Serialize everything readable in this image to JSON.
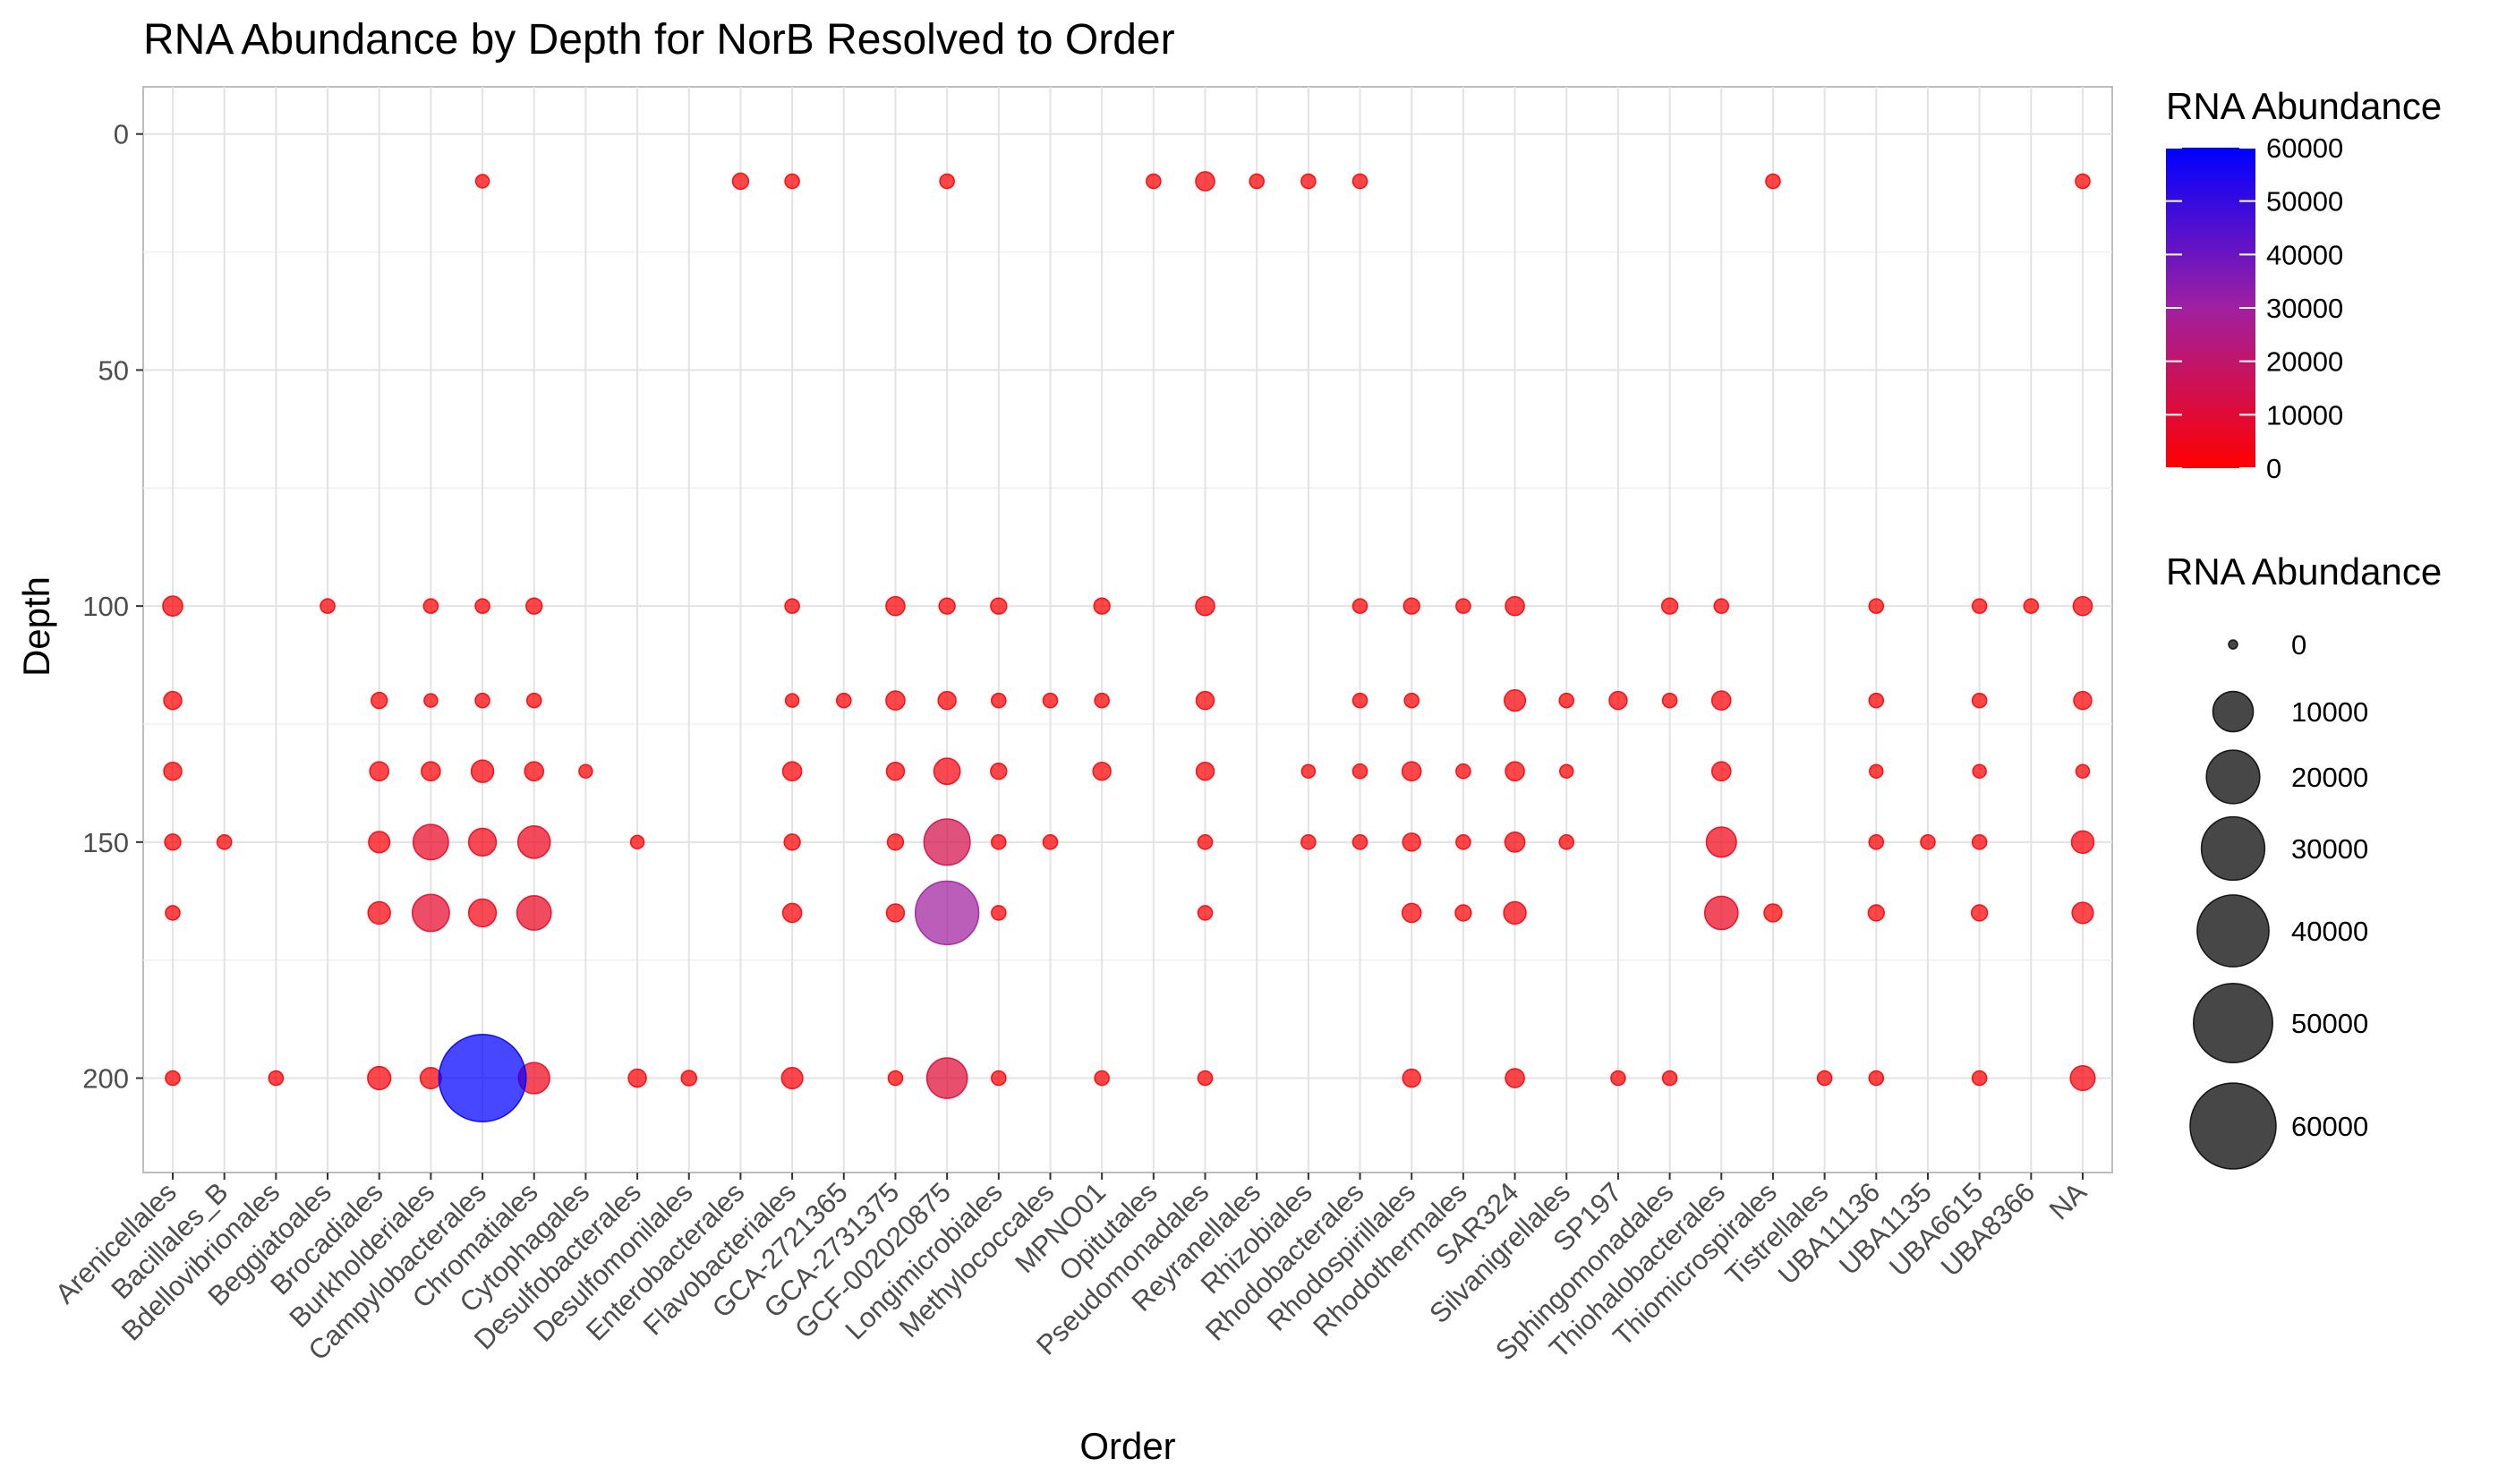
{
  "chart_data": {
    "type": "scatter",
    "title": "RNA Abundance by Depth for NorB Resolved to Order",
    "xlabel": "Order",
    "ylabel": "Depth",
    "ylim": [
      220,
      -10
    ],
    "y_reversed": true,
    "y_ticks": [
      0,
      50,
      100,
      150,
      200
    ],
    "grid": true,
    "categories": [
      "Arenicellales",
      "Bacillales_B",
      "Bdellovibrionales",
      "Beggiatoales",
      "Brocadiales",
      "Burkholderiales",
      "Campylobacterales",
      "Chromatiales",
      "Cytophagales",
      "Desulfobacterales",
      "Desulfomonilales",
      "Enterobacterales",
      "Flavobacteriales",
      "GCA-2721365",
      "GCA-2731375",
      "GCF-002020875",
      "Longimicrobiales",
      "Methylococcales",
      "MPNO01",
      "Opitutales",
      "Pseudomonadales",
      "Reyranellales",
      "Rhizobiales",
      "Rhodobacterales",
      "Rhodospirillales",
      "Rhodothermales",
      "SAR324",
      "Silvanigrellales",
      "SP197",
      "Sphingomonadales",
      "Thiohalobacterales",
      "Thiomicrospirales",
      "Tistrellales",
      "UBA11136",
      "UBA1135",
      "UBA6615",
      "UBA8366",
      "NA"
    ],
    "color_legend": {
      "title": "RNA Abundance",
      "low_color": "#ff0000",
      "mid_color": "#a020a0",
      "high_color": "#0000ff",
      "range": [
        0,
        60000
      ],
      "ticks": [
        0,
        10000,
        20000,
        30000,
        40000,
        50000,
        60000
      ]
    },
    "size_legend": {
      "title": "RNA Abundance",
      "values": [
        0,
        10000,
        20000,
        30000,
        40000,
        50000,
        60000
      ]
    },
    "points": [
      {
        "order": "Arenicellales",
        "depth": 100,
        "abundance": 1200
      },
      {
        "order": "Arenicellales",
        "depth": 120,
        "abundance": 800
      },
      {
        "order": "Arenicellales",
        "depth": 135,
        "abundance": 800
      },
      {
        "order": "Arenicellales",
        "depth": 150,
        "abundance": 500
      },
      {
        "order": "Arenicellales",
        "depth": 165,
        "abundance": 300
      },
      {
        "order": "Arenicellales",
        "depth": 200,
        "abundance": 300
      },
      {
        "order": "Bacillales_B",
        "depth": 150,
        "abundance": 300
      },
      {
        "order": "Bdellovibrionales",
        "depth": 200,
        "abundance": 300
      },
      {
        "order": "Beggiatoales",
        "depth": 100,
        "abundance": 300
      },
      {
        "order": "Brocadiales",
        "depth": 120,
        "abundance": 500
      },
      {
        "order": "Brocadiales",
        "depth": 135,
        "abundance": 1000
      },
      {
        "order": "Brocadiales",
        "depth": 150,
        "abundance": 1500
      },
      {
        "order": "Brocadiales",
        "depth": 165,
        "abundance": 1800
      },
      {
        "order": "Brocadiales",
        "depth": 200,
        "abundance": 2000
      },
      {
        "order": "Burkholderiales",
        "depth": 100,
        "abundance": 300
      },
      {
        "order": "Burkholderiales",
        "depth": 120,
        "abundance": 200
      },
      {
        "order": "Burkholderiales",
        "depth": 135,
        "abundance": 1000
      },
      {
        "order": "Burkholderiales",
        "depth": 150,
        "abundance": 7000
      },
      {
        "order": "Burkholderiales",
        "depth": 165,
        "abundance": 8000
      },
      {
        "order": "Burkholderiales",
        "depth": 200,
        "abundance": 1500
      },
      {
        "order": "Campylobacterales",
        "depth": 10,
        "abundance": 200
      },
      {
        "order": "Campylobacterales",
        "depth": 100,
        "abundance": 300
      },
      {
        "order": "Campylobacterales",
        "depth": 120,
        "abundance": 300
      },
      {
        "order": "Campylobacterales",
        "depth": 135,
        "abundance": 1800
      },
      {
        "order": "Campylobacterales",
        "depth": 150,
        "abundance": 3500
      },
      {
        "order": "Campylobacterales",
        "depth": 165,
        "abundance": 3500
      },
      {
        "order": "Campylobacterales",
        "depth": 200,
        "abundance": 62000
      },
      {
        "order": "Chromatiales",
        "depth": 100,
        "abundance": 500
      },
      {
        "order": "Chromatiales",
        "depth": 120,
        "abundance": 300
      },
      {
        "order": "Chromatiales",
        "depth": 135,
        "abundance": 1000
      },
      {
        "order": "Chromatiales",
        "depth": 150,
        "abundance": 5500
      },
      {
        "order": "Chromatiales",
        "depth": 165,
        "abundance": 6500
      },
      {
        "order": "Chromatiales",
        "depth": 200,
        "abundance": 5000
      },
      {
        "order": "Cytophagales",
        "depth": 135,
        "abundance": 200
      },
      {
        "order": "Desulfobacterales",
        "depth": 150,
        "abundance": 200
      },
      {
        "order": "Desulfobacterales",
        "depth": 200,
        "abundance": 800
      },
      {
        "order": "Desulfomonilales",
        "depth": 200,
        "abundance": 400
      },
      {
        "order": "Enterobacterales",
        "depth": 10,
        "abundance": 500
      },
      {
        "order": "Flavobacteriales",
        "depth": 10,
        "abundance": 300
      },
      {
        "order": "Flavobacteriales",
        "depth": 100,
        "abundance": 300
      },
      {
        "order": "Flavobacteriales",
        "depth": 120,
        "abundance": 200
      },
      {
        "order": "Flavobacteriales",
        "depth": 135,
        "abundance": 1000
      },
      {
        "order": "Flavobacteriales",
        "depth": 150,
        "abundance": 500
      },
      {
        "order": "Flavobacteriales",
        "depth": 165,
        "abundance": 1000
      },
      {
        "order": "Flavobacteriales",
        "depth": 200,
        "abundance": 1500
      },
      {
        "order": "GCA-2721365",
        "depth": 120,
        "abundance": 300
      },
      {
        "order": "GCA-2731375",
        "depth": 100,
        "abundance": 1000
      },
      {
        "order": "GCA-2731375",
        "depth": 120,
        "abundance": 1000
      },
      {
        "order": "GCA-2731375",
        "depth": 135,
        "abundance": 800
      },
      {
        "order": "GCA-2731375",
        "depth": 150,
        "abundance": 500
      },
      {
        "order": "GCA-2731375",
        "depth": 165,
        "abundance": 800
      },
      {
        "order": "GCA-2731375",
        "depth": 200,
        "abundance": 300
      },
      {
        "order": "GCF-002020875",
        "depth": 10,
        "abundance": 300
      },
      {
        "order": "GCF-002020875",
        "depth": 100,
        "abundance": 500
      },
      {
        "order": "GCF-002020875",
        "depth": 120,
        "abundance": 800
      },
      {
        "order": "GCF-002020875",
        "depth": 135,
        "abundance": 3000
      },
      {
        "order": "GCF-002020875",
        "depth": 150,
        "abundance": 14000
      },
      {
        "order": "GCF-002020875",
        "depth": 165,
        "abundance": 30000
      },
      {
        "order": "GCF-002020875",
        "depth": 200,
        "abundance": 10000
      },
      {
        "order": "Longimicrobiales",
        "depth": 100,
        "abundance": 500
      },
      {
        "order": "Longimicrobiales",
        "depth": 120,
        "abundance": 300
      },
      {
        "order": "Longimicrobiales",
        "depth": 135,
        "abundance": 500
      },
      {
        "order": "Longimicrobiales",
        "depth": 150,
        "abundance": 300
      },
      {
        "order": "Longimicrobiales",
        "depth": 165,
        "abundance": 300
      },
      {
        "order": "Longimicrobiales",
        "depth": 200,
        "abundance": 300
      },
      {
        "order": "Methylococcales",
        "depth": 120,
        "abundance": 300
      },
      {
        "order": "Methylococcales",
        "depth": 150,
        "abundance": 300
      },
      {
        "order": "MPNO01",
        "depth": 100,
        "abundance": 500
      },
      {
        "order": "MPNO01",
        "depth": 120,
        "abundance": 300
      },
      {
        "order": "MPNO01",
        "depth": 135,
        "abundance": 800
      },
      {
        "order": "MPNO01",
        "depth": 200,
        "abundance": 300
      },
      {
        "order": "Opitutales",
        "depth": 10,
        "abundance": 300
      },
      {
        "order": "Pseudomonadales",
        "depth": 10,
        "abundance": 1000
      },
      {
        "order": "Pseudomonadales",
        "depth": 100,
        "abundance": 1000
      },
      {
        "order": "Pseudomonadales",
        "depth": 120,
        "abundance": 800
      },
      {
        "order": "Pseudomonadales",
        "depth": 135,
        "abundance": 800
      },
      {
        "order": "Pseudomonadales",
        "depth": 150,
        "abundance": 300
      },
      {
        "order": "Pseudomonadales",
        "depth": 165,
        "abundance": 300
      },
      {
        "order": "Pseudomonadales",
        "depth": 200,
        "abundance": 300
      },
      {
        "order": "Reyranellales",
        "depth": 10,
        "abundance": 300
      },
      {
        "order": "Rhizobiales",
        "depth": 10,
        "abundance": 300
      },
      {
        "order": "Rhizobiales",
        "depth": 135,
        "abundance": 200
      },
      {
        "order": "Rhizobiales",
        "depth": 150,
        "abundance": 300
      },
      {
        "order": "Rhodobacterales",
        "depth": 10,
        "abundance": 300
      },
      {
        "order": "Rhodobacterales",
        "depth": 100,
        "abundance": 300
      },
      {
        "order": "Rhodobacterales",
        "depth": 120,
        "abundance": 300
      },
      {
        "order": "Rhodobacterales",
        "depth": 135,
        "abundance": 300
      },
      {
        "order": "Rhodobacterales",
        "depth": 150,
        "abundance": 300
      },
      {
        "order": "Rhodospirillales",
        "depth": 100,
        "abundance": 500
      },
      {
        "order": "Rhodospirillales",
        "depth": 120,
        "abundance": 300
      },
      {
        "order": "Rhodospirillales",
        "depth": 135,
        "abundance": 1000
      },
      {
        "order": "Rhodospirillales",
        "depth": 150,
        "abundance": 800
      },
      {
        "order": "Rhodospirillales",
        "depth": 165,
        "abundance": 1000
      },
      {
        "order": "Rhodospirillales",
        "depth": 200,
        "abundance": 800
      },
      {
        "order": "Rhodothermales",
        "depth": 100,
        "abundance": 300
      },
      {
        "order": "Rhodothermales",
        "depth": 135,
        "abundance": 300
      },
      {
        "order": "Rhodothermales",
        "depth": 150,
        "abundance": 300
      },
      {
        "order": "Rhodothermales",
        "depth": 165,
        "abundance": 500
      },
      {
        "order": "SAR324",
        "depth": 100,
        "abundance": 1000
      },
      {
        "order": "SAR324",
        "depth": 120,
        "abundance": 1500
      },
      {
        "order": "SAR324",
        "depth": 135,
        "abundance": 1000
      },
      {
        "order": "SAR324",
        "depth": 150,
        "abundance": 1200
      },
      {
        "order": "SAR324",
        "depth": 165,
        "abundance": 1800
      },
      {
        "order": "SAR324",
        "depth": 200,
        "abundance": 1000
      },
      {
        "order": "Silvanigrellales",
        "depth": 120,
        "abundance": 300
      },
      {
        "order": "Silvanigrellales",
        "depth": 135,
        "abundance": 200
      },
      {
        "order": "Silvanigrellales",
        "depth": 150,
        "abundance": 300
      },
      {
        "order": "SP197",
        "depth": 120,
        "abundance": 800
      },
      {
        "order": "SP197",
        "depth": 200,
        "abundance": 300
      },
      {
        "order": "Sphingomonadales",
        "depth": 100,
        "abundance": 500
      },
      {
        "order": "Sphingomonadales",
        "depth": 120,
        "abundance": 300
      },
      {
        "order": "Sphingomonadales",
        "depth": 200,
        "abundance": 300
      },
      {
        "order": "Thiohalobacterales",
        "depth": 100,
        "abundance": 300
      },
      {
        "order": "Thiohalobacterales",
        "depth": 120,
        "abundance": 1000
      },
      {
        "order": "Thiohalobacterales",
        "depth": 135,
        "abundance": 1000
      },
      {
        "order": "Thiohalobacterales",
        "depth": 150,
        "abundance": 4500
      },
      {
        "order": "Thiohalobacterales",
        "depth": 165,
        "abundance": 6000
      },
      {
        "order": "Thiomicrospirales",
        "depth": 10,
        "abundance": 300
      },
      {
        "order": "Thiomicrospirales",
        "depth": 165,
        "abundance": 800
      },
      {
        "order": "Tistrellales",
        "depth": 200,
        "abundance": 300
      },
      {
        "order": "UBA11136",
        "depth": 100,
        "abundance": 300
      },
      {
        "order": "UBA11136",
        "depth": 120,
        "abundance": 300
      },
      {
        "order": "UBA11136",
        "depth": 135,
        "abundance": 200
      },
      {
        "order": "UBA11136",
        "depth": 150,
        "abundance": 300
      },
      {
        "order": "UBA11136",
        "depth": 165,
        "abundance": 500
      },
      {
        "order": "UBA11136",
        "depth": 200,
        "abundance": 300
      },
      {
        "order": "UBA1135",
        "depth": 150,
        "abundance": 300
      },
      {
        "order": "UBA6615",
        "depth": 100,
        "abundance": 300
      },
      {
        "order": "UBA6615",
        "depth": 120,
        "abundance": 300
      },
      {
        "order": "UBA6615",
        "depth": 135,
        "abundance": 200
      },
      {
        "order": "UBA6615",
        "depth": 150,
        "abundance": 300
      },
      {
        "order": "UBA6615",
        "depth": 165,
        "abundance": 500
      },
      {
        "order": "UBA6615",
        "depth": 200,
        "abundance": 300
      },
      {
        "order": "UBA8366",
        "depth": 100,
        "abundance": 300
      },
      {
        "order": "NA",
        "depth": 10,
        "abundance": 300
      },
      {
        "order": "NA",
        "depth": 100,
        "abundance": 1000
      },
      {
        "order": "NA",
        "depth": 120,
        "abundance": 800
      },
      {
        "order": "NA",
        "depth": 135,
        "abundance": 200
      },
      {
        "order": "NA",
        "depth": 150,
        "abundance": 1800
      },
      {
        "order": "NA",
        "depth": 165,
        "abundance": 1500
      },
      {
        "order": "NA",
        "depth": 200,
        "abundance": 2500
      }
    ]
  }
}
